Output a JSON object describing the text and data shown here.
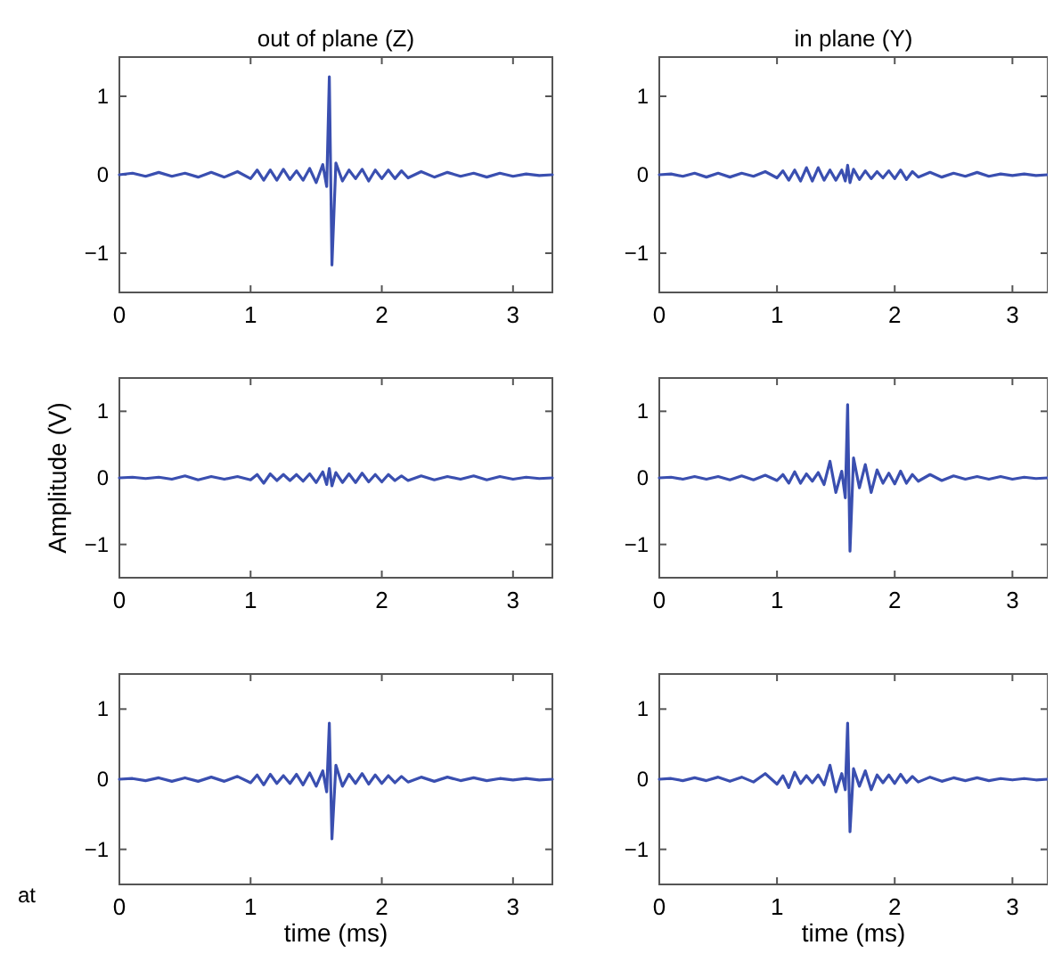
{
  "chart_data": [
    {
      "type": "line",
      "title": "out of plane (Z)",
      "xlim": [
        0,
        3.3
      ],
      "ylim": [
        -1.5,
        1.5
      ],
      "xticks": [
        0,
        1,
        2,
        3
      ],
      "yticks": [
        -1,
        0,
        1
      ],
      "grid": false,
      "x": [
        0,
        0.1,
        0.2,
        0.3,
        0.4,
        0.5,
        0.6,
        0.7,
        0.8,
        0.9,
        1.0,
        1.05,
        1.1,
        1.15,
        1.2,
        1.25,
        1.3,
        1.35,
        1.4,
        1.45,
        1.5,
        1.55,
        1.58,
        1.6,
        1.62,
        1.65,
        1.7,
        1.75,
        1.8,
        1.85,
        1.9,
        1.95,
        2.0,
        2.05,
        2.1,
        2.15,
        2.2,
        2.3,
        2.4,
        2.5,
        2.6,
        2.7,
        2.8,
        2.9,
        3.0,
        3.1,
        3.2,
        3.3
      ],
      "series": [
        {
          "color": "#3a4fb0",
          "values": [
            0,
            0.02,
            -0.02,
            0.03,
            -0.02,
            0.02,
            -0.03,
            0.03,
            -0.03,
            0.04,
            -0.05,
            0.06,
            -0.07,
            0.06,
            -0.07,
            0.07,
            -0.06,
            0.05,
            -0.07,
            0.08,
            -0.1,
            0.13,
            -0.15,
            1.25,
            -1.15,
            0.15,
            -0.08,
            0.06,
            -0.05,
            0.07,
            -0.08,
            0.06,
            -0.05,
            0.06,
            -0.05,
            0.05,
            -0.04,
            0.04,
            -0.03,
            0.03,
            -0.02,
            0.02,
            -0.03,
            0.02,
            -0.02,
            0.01,
            -0.01,
            0
          ]
        }
      ]
    },
    {
      "type": "line",
      "title": "in plane (Y)",
      "xlim": [
        0,
        3.3
      ],
      "ylim": [
        -1.5,
        1.5
      ],
      "xticks": [
        0,
        1,
        2,
        3
      ],
      "yticks": [
        -1,
        0,
        1
      ],
      "grid": false,
      "x": [
        0,
        0.1,
        0.2,
        0.3,
        0.4,
        0.5,
        0.6,
        0.7,
        0.8,
        0.9,
        1.0,
        1.05,
        1.1,
        1.15,
        1.2,
        1.25,
        1.3,
        1.35,
        1.4,
        1.45,
        1.5,
        1.55,
        1.58,
        1.6,
        1.62,
        1.65,
        1.7,
        1.75,
        1.8,
        1.85,
        1.9,
        1.95,
        2.0,
        2.05,
        2.1,
        2.15,
        2.2,
        2.3,
        2.4,
        2.5,
        2.6,
        2.7,
        2.8,
        2.9,
        3.0,
        3.1,
        3.2,
        3.3
      ],
      "series": [
        {
          "color": "#3a4fb0",
          "values": [
            0,
            0.01,
            -0.02,
            0.02,
            -0.03,
            0.02,
            -0.03,
            0.02,
            -0.02,
            0.04,
            -0.04,
            0.05,
            -0.07,
            0.06,
            -0.08,
            0.09,
            -0.08,
            0.09,
            -0.07,
            0.06,
            -0.07,
            0.06,
            -0.08,
            0.12,
            -0.1,
            0.07,
            -0.06,
            0.05,
            -0.05,
            0.04,
            -0.04,
            0.05,
            -0.05,
            0.06,
            -0.06,
            0.04,
            -0.03,
            0.03,
            -0.03,
            0.02,
            -0.02,
            0.03,
            -0.02,
            0.01,
            -0.01,
            0.01,
            -0.01,
            0
          ]
        }
      ]
    },
    {
      "type": "line",
      "ylabel": "Amplitude (V)",
      "xlim": [
        0,
        3.3
      ],
      "ylim": [
        -1.5,
        1.5
      ],
      "xticks": [
        0,
        1,
        2,
        3
      ],
      "yticks": [
        -1,
        0,
        1
      ],
      "grid": false,
      "x": [
        0,
        0.1,
        0.2,
        0.3,
        0.4,
        0.5,
        0.6,
        0.7,
        0.8,
        0.9,
        1.0,
        1.05,
        1.1,
        1.15,
        1.2,
        1.25,
        1.3,
        1.35,
        1.4,
        1.45,
        1.5,
        1.55,
        1.58,
        1.6,
        1.62,
        1.65,
        1.7,
        1.75,
        1.8,
        1.85,
        1.9,
        1.95,
        2.0,
        2.05,
        2.1,
        2.15,
        2.2,
        2.3,
        2.4,
        2.5,
        2.6,
        2.7,
        2.8,
        2.9,
        3.0,
        3.1,
        3.2,
        3.3
      ],
      "series": [
        {
          "color": "#3a4fb0",
          "values": [
            0,
            0.01,
            -0.01,
            0.01,
            -0.02,
            0.03,
            -0.03,
            0.02,
            -0.02,
            0.02,
            -0.03,
            0.05,
            -0.08,
            0.06,
            -0.04,
            0.05,
            -0.04,
            0.05,
            -0.05,
            0.06,
            -0.07,
            0.09,
            -0.1,
            0.14,
            -0.12,
            0.08,
            -0.07,
            0.06,
            -0.07,
            0.07,
            -0.06,
            0.05,
            -0.06,
            0.05,
            -0.04,
            0.03,
            -0.04,
            0.03,
            -0.03,
            0.02,
            -0.02,
            0.03,
            -0.03,
            0.02,
            -0.02,
            0.01,
            -0.01,
            0
          ]
        }
      ]
    },
    {
      "type": "line",
      "xlim": [
        0,
        3.3
      ],
      "ylim": [
        -1.5,
        1.5
      ],
      "xticks": [
        0,
        1,
        2,
        3
      ],
      "yticks": [
        -1,
        0,
        1
      ],
      "grid": false,
      "x": [
        0,
        0.1,
        0.2,
        0.3,
        0.4,
        0.5,
        0.6,
        0.7,
        0.8,
        0.9,
        1.0,
        1.05,
        1.1,
        1.15,
        1.2,
        1.25,
        1.3,
        1.35,
        1.4,
        1.45,
        1.5,
        1.55,
        1.58,
        1.6,
        1.62,
        1.65,
        1.7,
        1.75,
        1.8,
        1.85,
        1.9,
        1.95,
        2.0,
        2.05,
        2.1,
        2.15,
        2.2,
        2.3,
        2.4,
        2.5,
        2.6,
        2.7,
        2.8,
        2.9,
        3.0,
        3.1,
        3.2,
        3.3
      ],
      "series": [
        {
          "color": "#3a4fb0",
          "values": [
            0,
            0.01,
            -0.02,
            0.02,
            -0.02,
            0.02,
            -0.03,
            0.03,
            -0.03,
            0.04,
            -0.04,
            0.05,
            -0.08,
            0.09,
            -0.08,
            0.06,
            -0.05,
            0.08,
            -0.1,
            0.25,
            -0.22,
            0.1,
            -0.3,
            1.1,
            -1.1,
            0.3,
            -0.15,
            0.2,
            -0.22,
            0.12,
            -0.08,
            0.07,
            -0.09,
            0.1,
            -0.08,
            0.05,
            -0.05,
            0.05,
            -0.04,
            0.03,
            -0.02,
            0.02,
            -0.02,
            0.02,
            -0.02,
            0.01,
            -0.01,
            0
          ]
        }
      ]
    },
    {
      "type": "line",
      "xlabel": "time (ms)",
      "annotations": [
        "at"
      ],
      "xlim": [
        0,
        3.3
      ],
      "ylim": [
        -1.5,
        1.5
      ],
      "xticks": [
        0,
        1,
        2,
        3
      ],
      "yticks": [
        -1,
        0,
        1
      ],
      "grid": false,
      "x": [
        0,
        0.1,
        0.2,
        0.3,
        0.4,
        0.5,
        0.6,
        0.7,
        0.8,
        0.9,
        1.0,
        1.05,
        1.1,
        1.15,
        1.2,
        1.25,
        1.3,
        1.35,
        1.4,
        1.45,
        1.5,
        1.55,
        1.58,
        1.6,
        1.62,
        1.65,
        1.7,
        1.75,
        1.8,
        1.85,
        1.9,
        1.95,
        2.0,
        2.05,
        2.1,
        2.15,
        2.2,
        2.3,
        2.4,
        2.5,
        2.6,
        2.7,
        2.8,
        2.9,
        3.0,
        3.1,
        3.2,
        3.3
      ],
      "series": [
        {
          "color": "#3a4fb0",
          "values": [
            0,
            0.01,
            -0.02,
            0.02,
            -0.03,
            0.02,
            -0.03,
            0.03,
            -0.03,
            0.04,
            -0.05,
            0.06,
            -0.08,
            0.07,
            -0.06,
            0.05,
            -0.06,
            0.07,
            -0.08,
            0.09,
            -0.1,
            0.12,
            -0.18,
            0.8,
            -0.85,
            0.2,
            -0.1,
            0.07,
            -0.06,
            0.08,
            -0.07,
            0.06,
            -0.06,
            0.05,
            -0.05,
            0.04,
            -0.04,
            0.03,
            -0.03,
            0.03,
            -0.02,
            0.02,
            -0.02,
            0.01,
            -0.01,
            0.01,
            -0.01,
            0
          ]
        }
      ]
    },
    {
      "type": "line",
      "xlabel": "time (ms)",
      "xlim": [
        0,
        3.3
      ],
      "ylim": [
        -1.5,
        1.5
      ],
      "xticks": [
        0,
        1,
        2,
        3
      ],
      "yticks": [
        -1,
        0,
        1
      ],
      "grid": false,
      "x": [
        0,
        0.1,
        0.2,
        0.3,
        0.4,
        0.5,
        0.6,
        0.7,
        0.8,
        0.9,
        1.0,
        1.05,
        1.1,
        1.15,
        1.2,
        1.25,
        1.3,
        1.35,
        1.4,
        1.45,
        1.5,
        1.55,
        1.58,
        1.6,
        1.62,
        1.65,
        1.7,
        1.75,
        1.8,
        1.85,
        1.9,
        1.95,
        2.0,
        2.05,
        2.1,
        2.15,
        2.2,
        2.3,
        2.4,
        2.5,
        2.6,
        2.7,
        2.8,
        2.9,
        3.0,
        3.1,
        3.2,
        3.3
      ],
      "series": [
        {
          "color": "#3a4fb0",
          "values": [
            0,
            0.01,
            -0.02,
            0.02,
            -0.02,
            0.03,
            -0.03,
            0.03,
            -0.04,
            0.08,
            -0.07,
            0.05,
            -0.12,
            0.1,
            -0.06,
            0.05,
            -0.05,
            0.06,
            -0.08,
            0.2,
            -0.18,
            0.08,
            -0.15,
            0.8,
            -0.75,
            0.15,
            -0.1,
            0.12,
            -0.15,
            0.06,
            -0.05,
            0.06,
            -0.06,
            0.07,
            -0.05,
            0.04,
            -0.04,
            0.03,
            -0.03,
            0.02,
            -0.02,
            0.02,
            -0.02,
            0.01,
            -0.01,
            0.01,
            -0.01,
            0
          ]
        }
      ]
    }
  ]
}
